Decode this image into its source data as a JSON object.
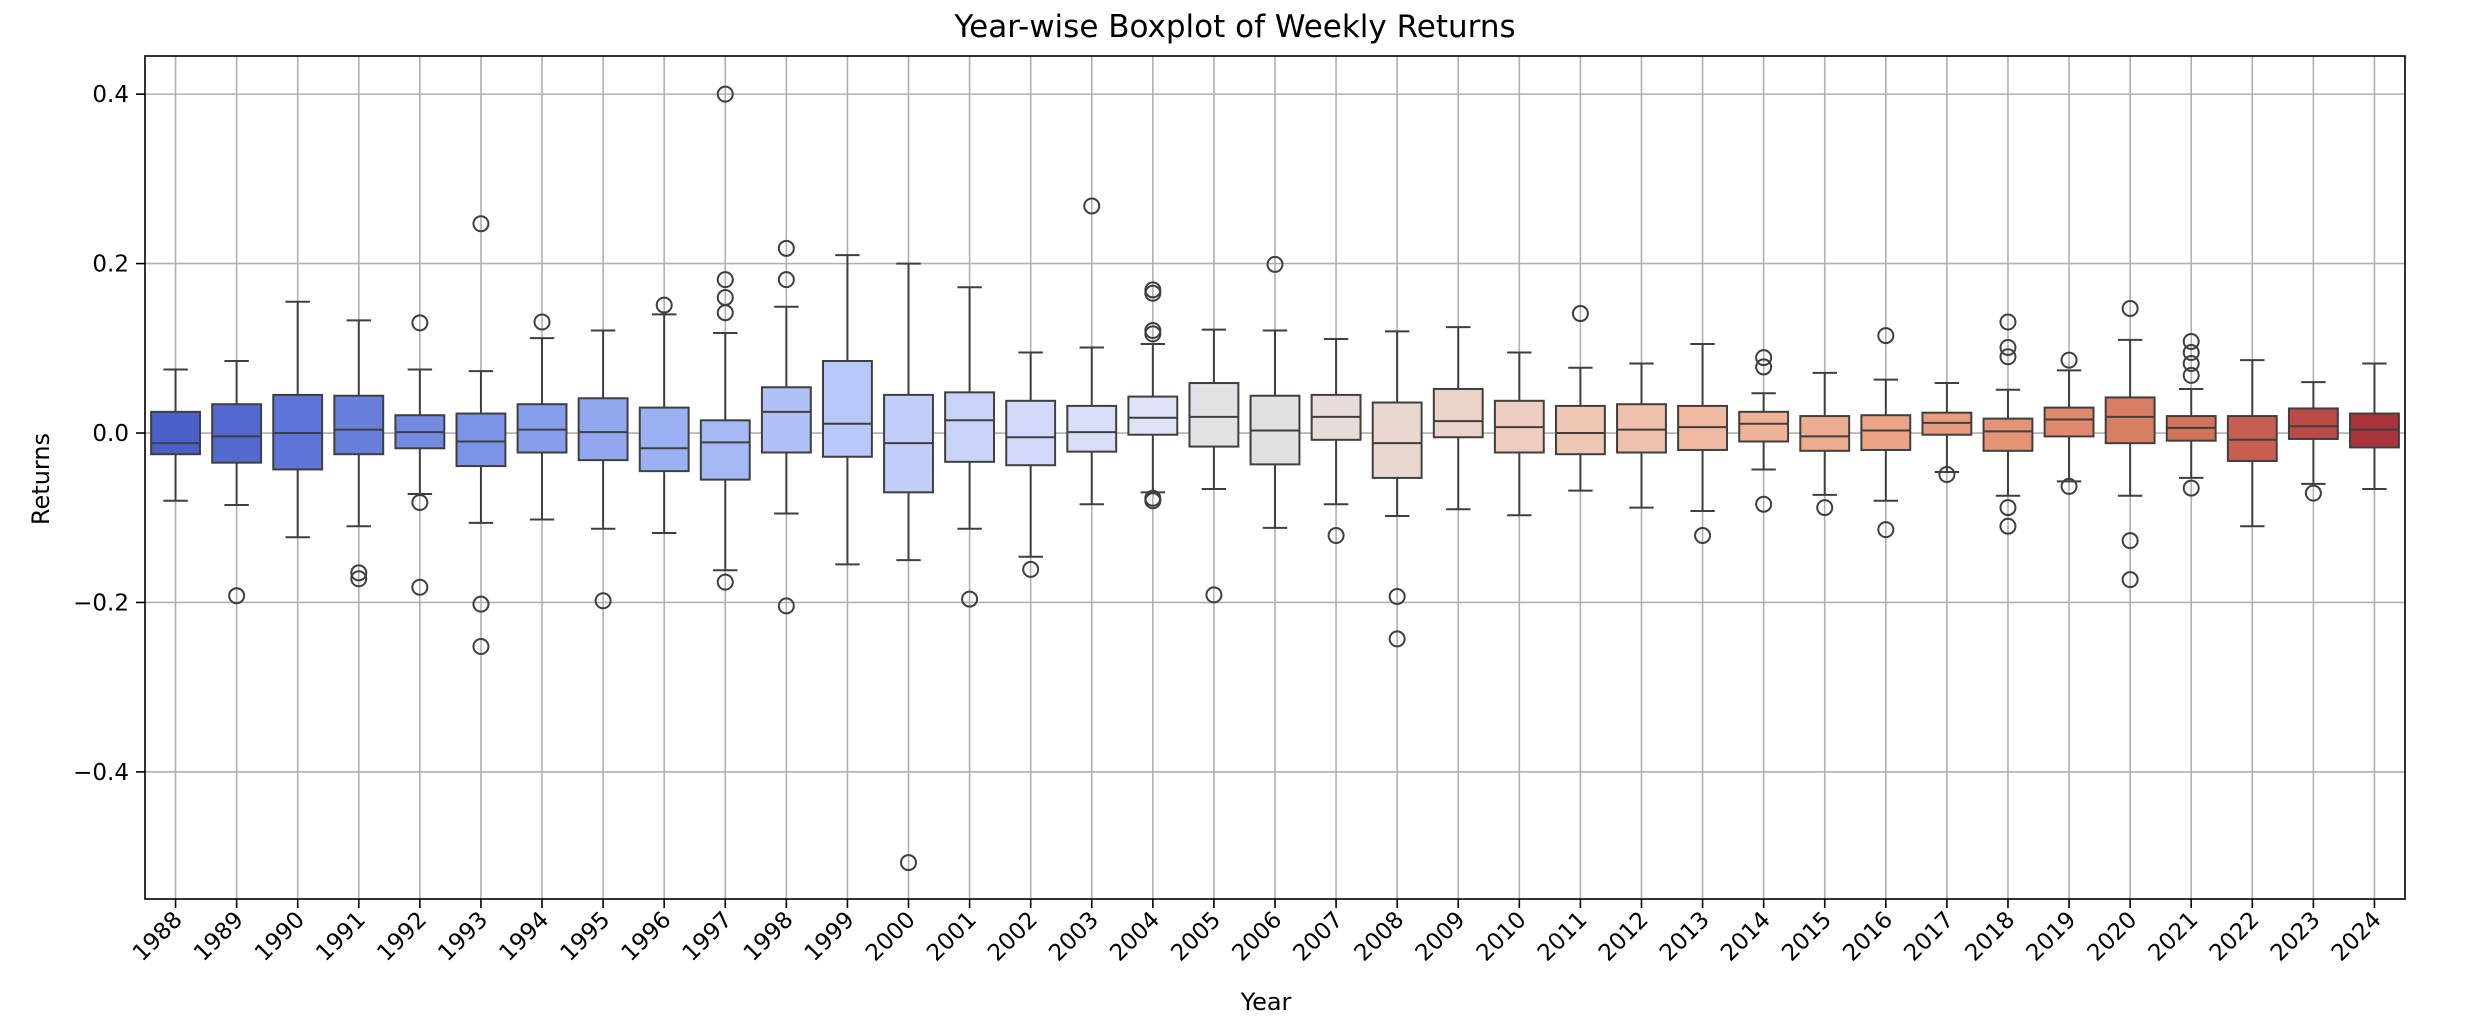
{
  "chart_data": {
    "type": "boxplot",
    "title": "Year-wise Boxplot of Weekly Returns",
    "xlabel": "Year",
    "ylabel": "Returns",
    "ylim": [
      -0.55,
      0.445
    ],
    "yticks": [
      -0.4,
      -0.2,
      0.0,
      0.2,
      0.4
    ],
    "ytick_labels": [
      "−0.4",
      "−0.2",
      "0.0",
      "0.2",
      "0.4"
    ],
    "grid": true,
    "legend": "none",
    "colormap": "coolwarm",
    "categories": [
      "1988",
      "1989",
      "1990",
      "1991",
      "1992",
      "1993",
      "1994",
      "1995",
      "1996",
      "1997",
      "1998",
      "1999",
      "2000",
      "2001",
      "2002",
      "2003",
      "2004",
      "2005",
      "2006",
      "2007",
      "2008",
      "2009",
      "2010",
      "2011",
      "2012",
      "2013",
      "2014",
      "2015",
      "2016",
      "2017",
      "2018",
      "2019",
      "2020",
      "2021",
      "2022",
      "2023",
      "2024"
    ],
    "boxes": [
      {
        "year": "1988",
        "whisker_low": -0.08,
        "q1": -0.025,
        "median": -0.012,
        "q3": 0.025,
        "whisker_high": 0.075,
        "outliers": [],
        "color": "#4a5fc8"
      },
      {
        "year": "1989",
        "whisker_low": -0.085,
        "q1": -0.035,
        "median": -0.004,
        "q3": 0.034,
        "whisker_high": 0.085,
        "outliers": [
          -0.192
        ],
        "color": "#5469cf"
      },
      {
        "year": "1990",
        "whisker_low": -0.123,
        "q1": -0.043,
        "median": 0.0,
        "q3": 0.045,
        "whisker_high": 0.155,
        "outliers": [],
        "color": "#5e74d6"
      },
      {
        "year": "1991",
        "whisker_low": -0.11,
        "q1": -0.025,
        "median": 0.004,
        "q3": 0.044,
        "whisker_high": 0.133,
        "outliers": [
          -0.165,
          -0.172
        ],
        "color": "#687fdc"
      },
      {
        "year": "1992",
        "whisker_low": -0.072,
        "q1": -0.018,
        "median": 0.001,
        "q3": 0.021,
        "whisker_high": 0.075,
        "outliers": [
          0.13,
          -0.082,
          -0.182
        ],
        "color": "#728ae2"
      },
      {
        "year": "1993",
        "whisker_low": -0.106,
        "q1": -0.039,
        "median": -0.01,
        "q3": 0.023,
        "whisker_high": 0.073,
        "outliers": [
          0.247,
          -0.202,
          -0.252
        ],
        "color": "#7c94e7"
      },
      {
        "year": "1994",
        "whisker_low": -0.102,
        "q1": -0.023,
        "median": 0.004,
        "q3": 0.034,
        "whisker_high": 0.112,
        "outliers": [
          0.131
        ],
        "color": "#879eeb"
      },
      {
        "year": "1995",
        "whisker_low": -0.113,
        "q1": -0.032,
        "median": 0.001,
        "q3": 0.041,
        "whisker_high": 0.121,
        "outliers": [
          -0.198
        ],
        "color": "#91a8ef"
      },
      {
        "year": "1996",
        "whisker_low": -0.118,
        "q1": -0.045,
        "median": -0.018,
        "q3": 0.03,
        "whisker_high": 0.14,
        "outliers": [
          0.151
        ],
        "color": "#9bb1f2"
      },
      {
        "year": "1997",
        "whisker_low": -0.162,
        "q1": -0.055,
        "median": -0.011,
        "q3": 0.015,
        "whisker_high": 0.118,
        "outliers": [
          0.4,
          0.181,
          0.16,
          0.142,
          -0.176
        ],
        "color": "#a5b9f5"
      },
      {
        "year": "1998",
        "whisker_low": -0.095,
        "q1": -0.023,
        "median": 0.025,
        "q3": 0.054,
        "whisker_high": 0.149,
        "outliers": [
          0.218,
          0.181,
          -0.204
        ],
        "color": "#afc1f7"
      },
      {
        "year": "1999",
        "whisker_low": -0.155,
        "q1": -0.028,
        "median": 0.011,
        "q3": 0.085,
        "whisker_high": 0.21,
        "outliers": [],
        "color": "#b8c8f9"
      },
      {
        "year": "2000",
        "whisker_low": -0.15,
        "q1": -0.07,
        "median": -0.012,
        "q3": 0.045,
        "whisker_high": 0.2,
        "outliers": [
          -0.507
        ],
        "color": "#c1cefa"
      },
      {
        "year": "2001",
        "whisker_low": -0.113,
        "q1": -0.034,
        "median": 0.015,
        "q3": 0.048,
        "whisker_high": 0.172,
        "outliers": [
          -0.196
        ],
        "color": "#cad4fa"
      },
      {
        "year": "2002",
        "whisker_low": -0.146,
        "q1": -0.038,
        "median": -0.005,
        "q3": 0.038,
        "whisker_high": 0.095,
        "outliers": [
          -0.161
        ],
        "color": "#d2d9fa"
      },
      {
        "year": "2003",
        "whisker_low": -0.084,
        "q1": -0.022,
        "median": 0.001,
        "q3": 0.032,
        "whisker_high": 0.101,
        "outliers": [
          0.268
        ],
        "color": "#d9dff9"
      },
      {
        "year": "2004",
        "whisker_low": -0.07,
        "q1": -0.002,
        "median": 0.018,
        "q3": 0.043,
        "whisker_high": 0.105,
        "outliers": [
          0.169,
          0.165,
          0.121,
          0.117,
          -0.077,
          -0.08
        ],
        "color": "#dfe3f5"
      },
      {
        "year": "2005",
        "whisker_low": -0.066,
        "q1": -0.016,
        "median": 0.019,
        "q3": 0.059,
        "whisker_high": 0.122,
        "outliers": [
          -0.191
        ],
        "color": "#e2e2e6"
      },
      {
        "year": "2006",
        "whisker_low": -0.112,
        "q1": -0.037,
        "median": 0.003,
        "q3": 0.044,
        "whisker_high": 0.121,
        "outliers": [
          0.199
        ],
        "color": "#e4e0e0"
      },
      {
        "year": "2007",
        "whisker_low": -0.084,
        "q1": -0.008,
        "median": 0.019,
        "q3": 0.045,
        "whisker_high": 0.111,
        "outliers": [
          -0.121
        ],
        "color": "#e6ddda"
      },
      {
        "year": "2008",
        "whisker_low": -0.098,
        "q1": -0.053,
        "median": -0.012,
        "q3": 0.036,
        "whisker_high": 0.12,
        "outliers": [
          -0.193,
          -0.243
        ],
        "color": "#e8d8d0"
      },
      {
        "year": "2009",
        "whisker_low": -0.09,
        "q1": -0.005,
        "median": 0.014,
        "q3": 0.052,
        "whisker_high": 0.125,
        "outliers": [],
        "color": "#ecd3c7"
      },
      {
        "year": "2010",
        "whisker_low": -0.097,
        "q1": -0.023,
        "median": 0.007,
        "q3": 0.038,
        "whisker_high": 0.095,
        "outliers": [],
        "color": "#eecdbe"
      },
      {
        "year": "2011",
        "whisker_low": -0.068,
        "q1": -0.025,
        "median": 0.0,
        "q3": 0.032,
        "whisker_high": 0.077,
        "outliers": [
          0.141
        ],
        "color": "#efc7b5"
      },
      {
        "year": "2012",
        "whisker_low": -0.088,
        "q1": -0.023,
        "median": 0.004,
        "q3": 0.034,
        "whisker_high": 0.082,
        "outliers": [],
        "color": "#f0c1ac"
      },
      {
        "year": "2013",
        "whisker_low": -0.092,
        "q1": -0.02,
        "median": 0.007,
        "q3": 0.032,
        "whisker_high": 0.105,
        "outliers": [
          -0.121
        ],
        "color": "#f0baa2"
      },
      {
        "year": "2014",
        "whisker_low": -0.043,
        "q1": -0.01,
        "median": 0.011,
        "q3": 0.025,
        "whisker_high": 0.047,
        "outliers": [
          0.089,
          0.078,
          -0.084
        ],
        "color": "#efb398"
      },
      {
        "year": "2015",
        "whisker_low": -0.073,
        "q1": -0.021,
        "median": -0.004,
        "q3": 0.02,
        "whisker_high": 0.071,
        "outliers": [
          -0.088
        ],
        "color": "#edac8f"
      },
      {
        "year": "2016",
        "whisker_low": -0.08,
        "q1": -0.02,
        "median": 0.003,
        "q3": 0.021,
        "whisker_high": 0.063,
        "outliers": [
          0.115,
          -0.114
        ],
        "color": "#eba486"
      },
      {
        "year": "2017",
        "whisker_low": -0.046,
        "q1": -0.002,
        "median": 0.012,
        "q3": 0.024,
        "whisker_high": 0.059,
        "outliers": [
          -0.049
        ],
        "color": "#e89c7d"
      },
      {
        "year": "2018",
        "whisker_low": -0.074,
        "q1": -0.021,
        "median": 0.002,
        "q3": 0.017,
        "whisker_high": 0.051,
        "outliers": [
          0.131,
          0.101,
          0.09,
          -0.088,
          -0.11
        ],
        "color": "#e49374"
      },
      {
        "year": "2019",
        "whisker_low": -0.057,
        "q1": -0.004,
        "median": 0.016,
        "q3": 0.03,
        "whisker_high": 0.074,
        "outliers": [
          0.086,
          -0.063
        ],
        "color": "#df8a6c"
      },
      {
        "year": "2020",
        "whisker_low": -0.074,
        "q1": -0.012,
        "median": 0.019,
        "q3": 0.042,
        "whisker_high": 0.11,
        "outliers": [
          0.147,
          -0.127,
          -0.173
        ],
        "color": "#d87f63"
      },
      {
        "year": "2021",
        "whisker_low": -0.053,
        "q1": -0.009,
        "median": 0.006,
        "q3": 0.02,
        "whisker_high": 0.052,
        "outliers": [
          0.108,
          0.095,
          0.082,
          0.068,
          -0.065
        ],
        "color": "#d0735a"
      },
      {
        "year": "2022",
        "whisker_low": -0.11,
        "q1": -0.033,
        "median": -0.008,
        "q3": 0.02,
        "whisker_high": 0.086,
        "outliers": [],
        "color": "#c65f50"
      },
      {
        "year": "2023",
        "whisker_low": -0.06,
        "q1": -0.007,
        "median": 0.008,
        "q3": 0.029,
        "whisker_high": 0.06,
        "outliers": [
          -0.071
        ],
        "color": "#b94a45"
      },
      {
        "year": "2024",
        "whisker_low": -0.066,
        "q1": -0.017,
        "median": 0.004,
        "q3": 0.023,
        "whisker_high": 0.082,
        "outliers": [],
        "color": "#a8333b"
      }
    ]
  }
}
